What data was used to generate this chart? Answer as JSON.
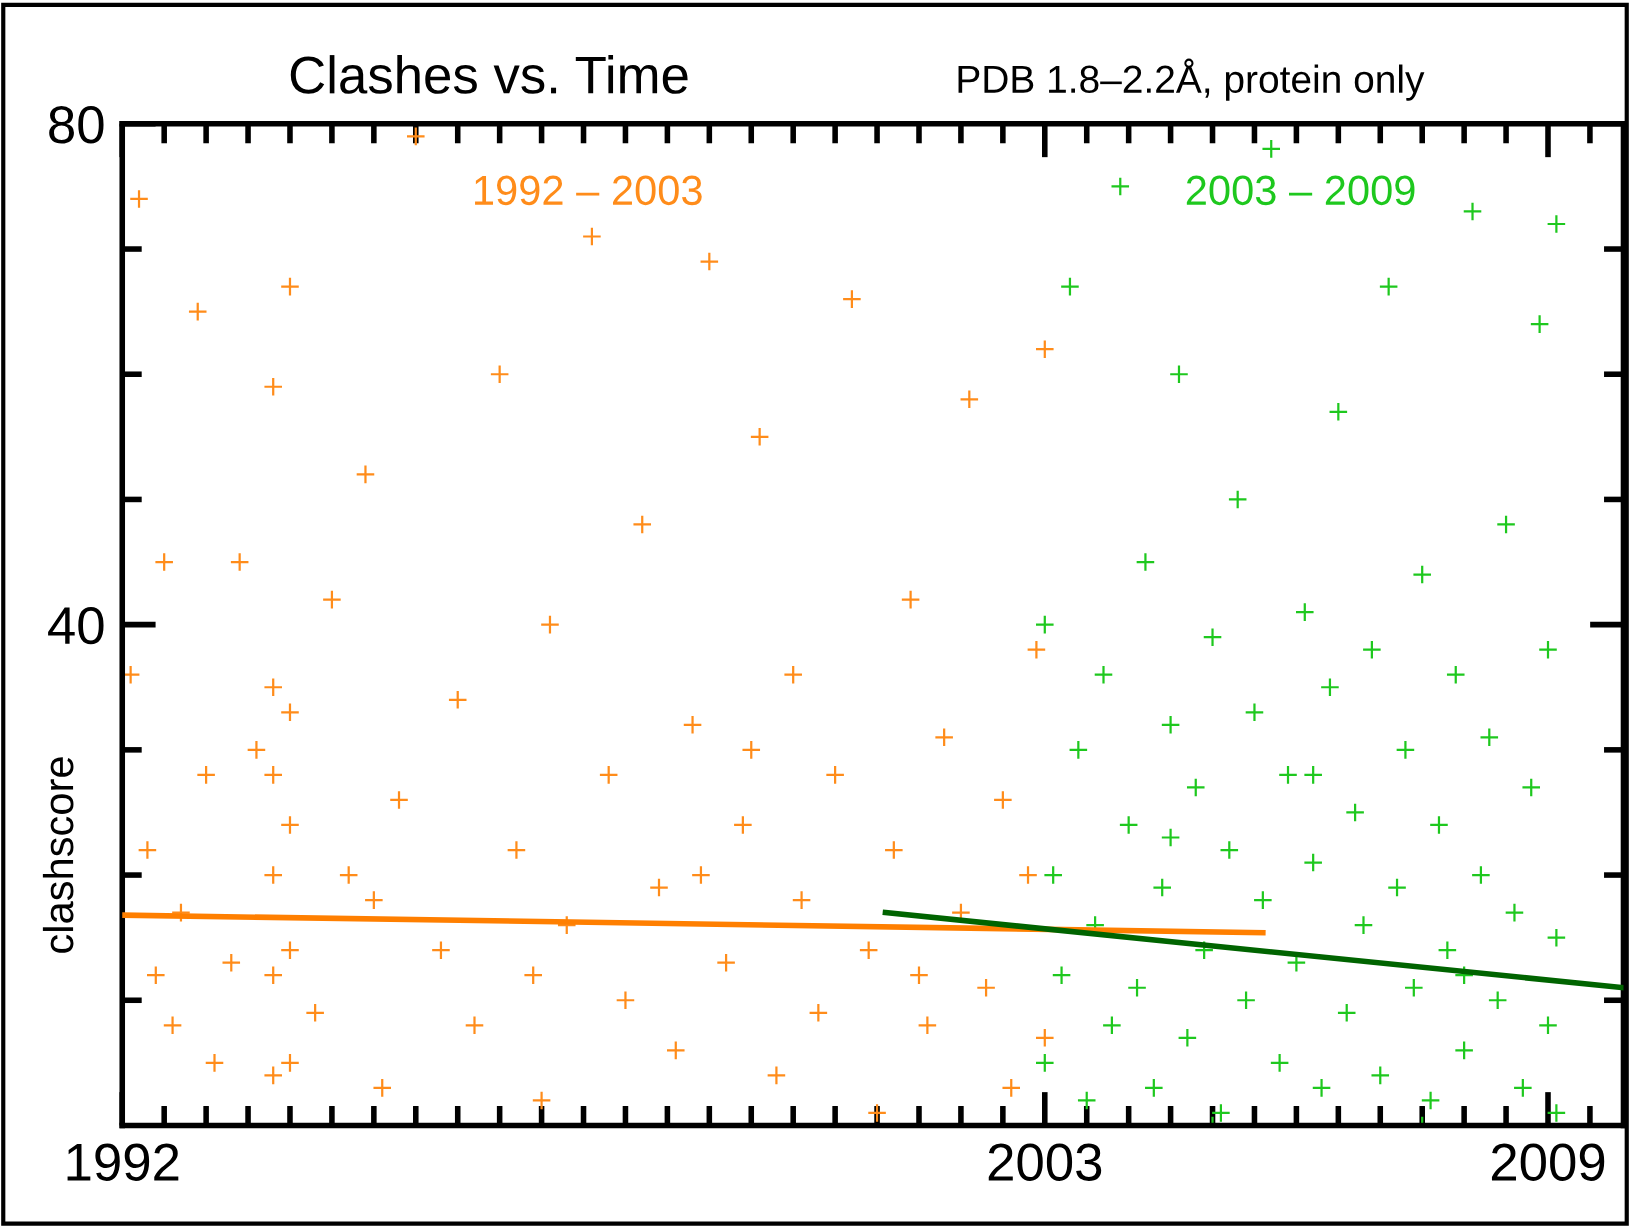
{
  "chart_data": {
    "type": "scatter",
    "title": "Clashes vs. Time",
    "subtitle": "PDB 1.8–2.2Å, protein only",
    "ylabel": "clashscore",
    "xlim": [
      1992,
      2009.9
    ],
    "ylim": [
      0,
      80
    ],
    "xticks": [
      1992,
      {
        "value": 1992.5,
        "label": null
      },
      {
        "value": 1993,
        "label": null
      },
      {
        "value": 1993.5,
        "label": null
      },
      {
        "value": 1994,
        "label": null
      },
      {
        "value": 1994.5,
        "label": null
      },
      {
        "value": 1995,
        "label": null
      },
      {
        "value": 1995.5,
        "label": null
      },
      {
        "value": 1996,
        "label": null
      },
      {
        "value": 1996.5,
        "label": null
      },
      {
        "value": 1997,
        "label": null
      },
      {
        "value": 1997.5,
        "label": null
      },
      {
        "value": 1998,
        "label": null
      },
      {
        "value": 1998.5,
        "label": null
      },
      {
        "value": 1999,
        "label": null
      },
      {
        "value": 1999.5,
        "label": null
      },
      {
        "value": 2000,
        "label": null
      },
      {
        "value": 2000.5,
        "label": null
      },
      {
        "value": 2001,
        "label": null
      },
      {
        "value": 2001.5,
        "label": null
      },
      {
        "value": 2002,
        "label": null
      },
      {
        "value": 2002.5,
        "label": null
      },
      2003,
      {
        "value": 2003.5,
        "label": null
      },
      {
        "value": 2004,
        "label": null
      },
      {
        "value": 2004.5,
        "label": null
      },
      {
        "value": 2005,
        "label": null
      },
      {
        "value": 2005.5,
        "label": null
      },
      {
        "value": 2006,
        "label": null
      },
      {
        "value": 2006.5,
        "label": null
      },
      {
        "value": 2007,
        "label": null
      },
      {
        "value": 2007.5,
        "label": null
      },
      {
        "value": 2008,
        "label": null
      },
      {
        "value": 2008.5,
        "label": null
      },
      2009,
      {
        "value": 2009.5,
        "label": null
      }
    ],
    "yticks": [
      {
        "value": 10,
        "label": null
      },
      {
        "value": 20,
        "label": null
      },
      {
        "value": 30,
        "label": null
      },
      40,
      {
        "value": 50,
        "label": null
      },
      {
        "value": 60,
        "label": null
      },
      {
        "value": 70,
        "label": null
      },
      80
    ],
    "grid": false,
    "legend": false,
    "series": [
      {
        "name": "1992 – 2003",
        "color": "#ff8c1a",
        "marker": "cross",
        "x": [
          1992.1,
          1992.2,
          1992.3,
          1992.4,
          1992.5,
          1992.6,
          1992.7,
          1992.9,
          1993.0,
          1993.1,
          1993.3,
          1993.4,
          1993.6,
          1993.8,
          1993.8,
          1993.8,
          1993.8,
          1993.8,
          1993.8,
          1994.0,
          1994.0,
          1994.0,
          1994.0,
          1994.0,
          1994.3,
          1994.5,
          1994.7,
          1994.9,
          1995.1,
          1995.3,
          1995.5,
          1995.8,
          1996.0,
          1996.2,
          1996.5,
          1996.7,
          1997.0,
          1997.1,
          1997.3,
          1997.6,
          1997.8,
          1998.0,
          1998.2,
          1998.4,
          1998.6,
          1998.8,
          1999.0,
          1999.2,
          1999.4,
          1999.6,
          1999.8,
          2000.0,
          2000.1,
          2000.3,
          2000.5,
          2000.7,
          2000.9,
          2001.0,
          2001.2,
          2001.4,
          2001.6,
          2001.8,
          2002.0,
          2002.1,
          2002.3,
          2002.5,
          2002.6,
          2002.8,
          2002.9,
          2003.0,
          2003.0,
          1996.9,
          1999.5,
          2001.5,
          1995.0,
          1998.9
        ],
        "values": [
          36,
          74,
          22,
          12,
          45,
          8,
          17,
          65,
          28,
          5,
          13,
          45,
          30,
          4,
          12,
          20,
          28,
          35,
          59,
          5,
          14,
          24,
          33,
          67,
          9,
          42,
          20,
          52,
          3,
          26,
          79,
          14,
          34,
          8,
          60,
          22,
          2,
          40,
          16,
          71,
          28,
          10,
          48,
          19,
          6,
          32,
          69,
          13,
          24,
          55,
          4,
          36,
          18,
          9,
          28,
          66,
          14,
          1,
          22,
          42,
          8,
          31,
          17,
          58,
          11,
          26,
          3,
          20,
          38,
          7,
          62,
          12,
          30,
          12,
          18,
          20
        ]
      },
      {
        "name": "2003 – 2009",
        "color": "#1ec81e",
        "marker": "cross",
        "x": [
          2003.0,
          2003.0,
          2003.1,
          2003.2,
          2003.3,
          2003.4,
          2003.5,
          2003.6,
          2003.7,
          2003.8,
          2003.9,
          2004.0,
          2004.1,
          2004.2,
          2004.3,
          2004.4,
          2004.5,
          2004.6,
          2004.7,
          2004.8,
          2004.9,
          2005.0,
          2005.1,
          2005.2,
          2005.3,
          2005.4,
          2005.5,
          2005.6,
          2005.7,
          2005.8,
          2005.9,
          2006.0,
          2006.1,
          2006.2,
          2006.3,
          2006.4,
          2006.5,
          2006.6,
          2006.7,
          2006.8,
          2006.9,
          2007.0,
          2007.1,
          2007.2,
          2007.3,
          2007.4,
          2007.5,
          2007.6,
          2007.7,
          2007.8,
          2007.9,
          2008.0,
          2008.1,
          2008.2,
          2008.3,
          2008.4,
          2008.5,
          2008.6,
          2008.7,
          2008.8,
          2008.9,
          2009.0,
          2009.0,
          2009.1,
          2009.1,
          2009.1,
          2005.0,
          2007.5,
          2004.5,
          2006.2,
          2008.0
        ],
        "values": [
          40,
          5,
          20,
          12,
          67,
          30,
          2,
          16,
          36,
          8,
          75,
          24,
          11,
          45,
          3,
          19,
          32,
          60,
          7,
          27,
          14,
          39,
          1,
          22,
          50,
          10,
          33,
          18,
          78,
          5,
          28,
          13,
          41,
          21,
          3,
          35,
          57,
          9,
          25,
          16,
          38,
          4,
          67,
          19,
          30,
          11,
          44,
          2,
          24,
          14,
          36,
          6,
          73,
          20,
          31,
          10,
          48,
          17,
          3,
          27,
          64,
          8,
          38,
          15,
          1,
          72,
          0,
          0,
          23,
          28,
          12
        ]
      },
      {
        "type": "line",
        "color": "#ff7f00",
        "marker": "none",
        "x": [
          1992,
          2005.6
        ],
        "values": [
          16.8,
          15.4
        ]
      },
      {
        "type": "line",
        "color": "#006400",
        "marker": "none",
        "x": [
          2001.1,
          2009.9
        ],
        "values": [
          17.0,
          11.0
        ]
      }
    ]
  }
}
